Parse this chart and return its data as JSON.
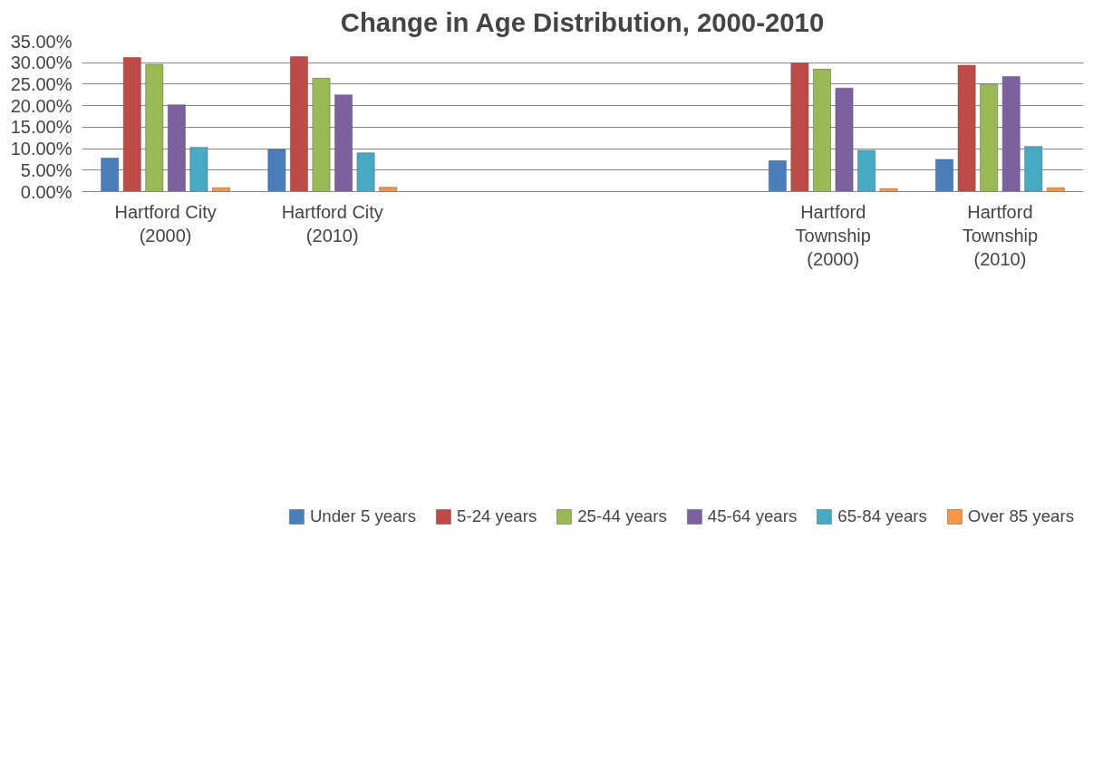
{
  "chart_data": {
    "type": "bar",
    "title": "Change in Age Distribution, 2000-2010",
    "categories": [
      "Hartford City\n(2000)",
      "Hartford City\n(2010)",
      null,
      null,
      "Hartford\nTownship\n(2000)",
      "Hartford\nTownship\n(2010)"
    ],
    "series": [
      {
        "name": "Under 5 years",
        "color": "#4a7ebb",
        "values": [
          7.8,
          9.8,
          null,
          null,
          7.2,
          7.5
        ]
      },
      {
        "name": "5-24 years",
        "color": "#be4b48",
        "values": [
          31.2,
          31.4,
          null,
          null,
          29.9,
          29.4
        ]
      },
      {
        "name": "25-44 years",
        "color": "#98b954",
        "values": [
          29.6,
          26.4,
          null,
          null,
          28.5,
          24.9
        ]
      },
      {
        "name": "45-64 years",
        "color": "#7d60a0",
        "values": [
          20.2,
          22.5,
          null,
          null,
          24.1,
          26.8
        ]
      },
      {
        "name": "65-84 years",
        "color": "#46aac5",
        "values": [
          10.3,
          9.0,
          null,
          null,
          9.6,
          10.5
        ]
      },
      {
        "name": "Over 85 years",
        "color": "#f79646",
        "values": [
          0.9,
          1.0,
          null,
          null,
          0.7,
          0.9
        ]
      }
    ],
    "ylim": [
      0,
      35
    ],
    "yticks": [
      {
        "value": 0,
        "label": "0.00%"
      },
      {
        "value": 5,
        "label": "5.00%"
      },
      {
        "value": 10,
        "label": "10.00%"
      },
      {
        "value": 15,
        "label": "15.00%"
      },
      {
        "value": 20,
        "label": "20.00%"
      },
      {
        "value": 25,
        "label": "25.00%"
      },
      {
        "value": 30,
        "label": "30.00%"
      },
      {
        "value": 35,
        "label": "35.00%"
      }
    ],
    "grid": "y",
    "legend": "bottom"
  }
}
